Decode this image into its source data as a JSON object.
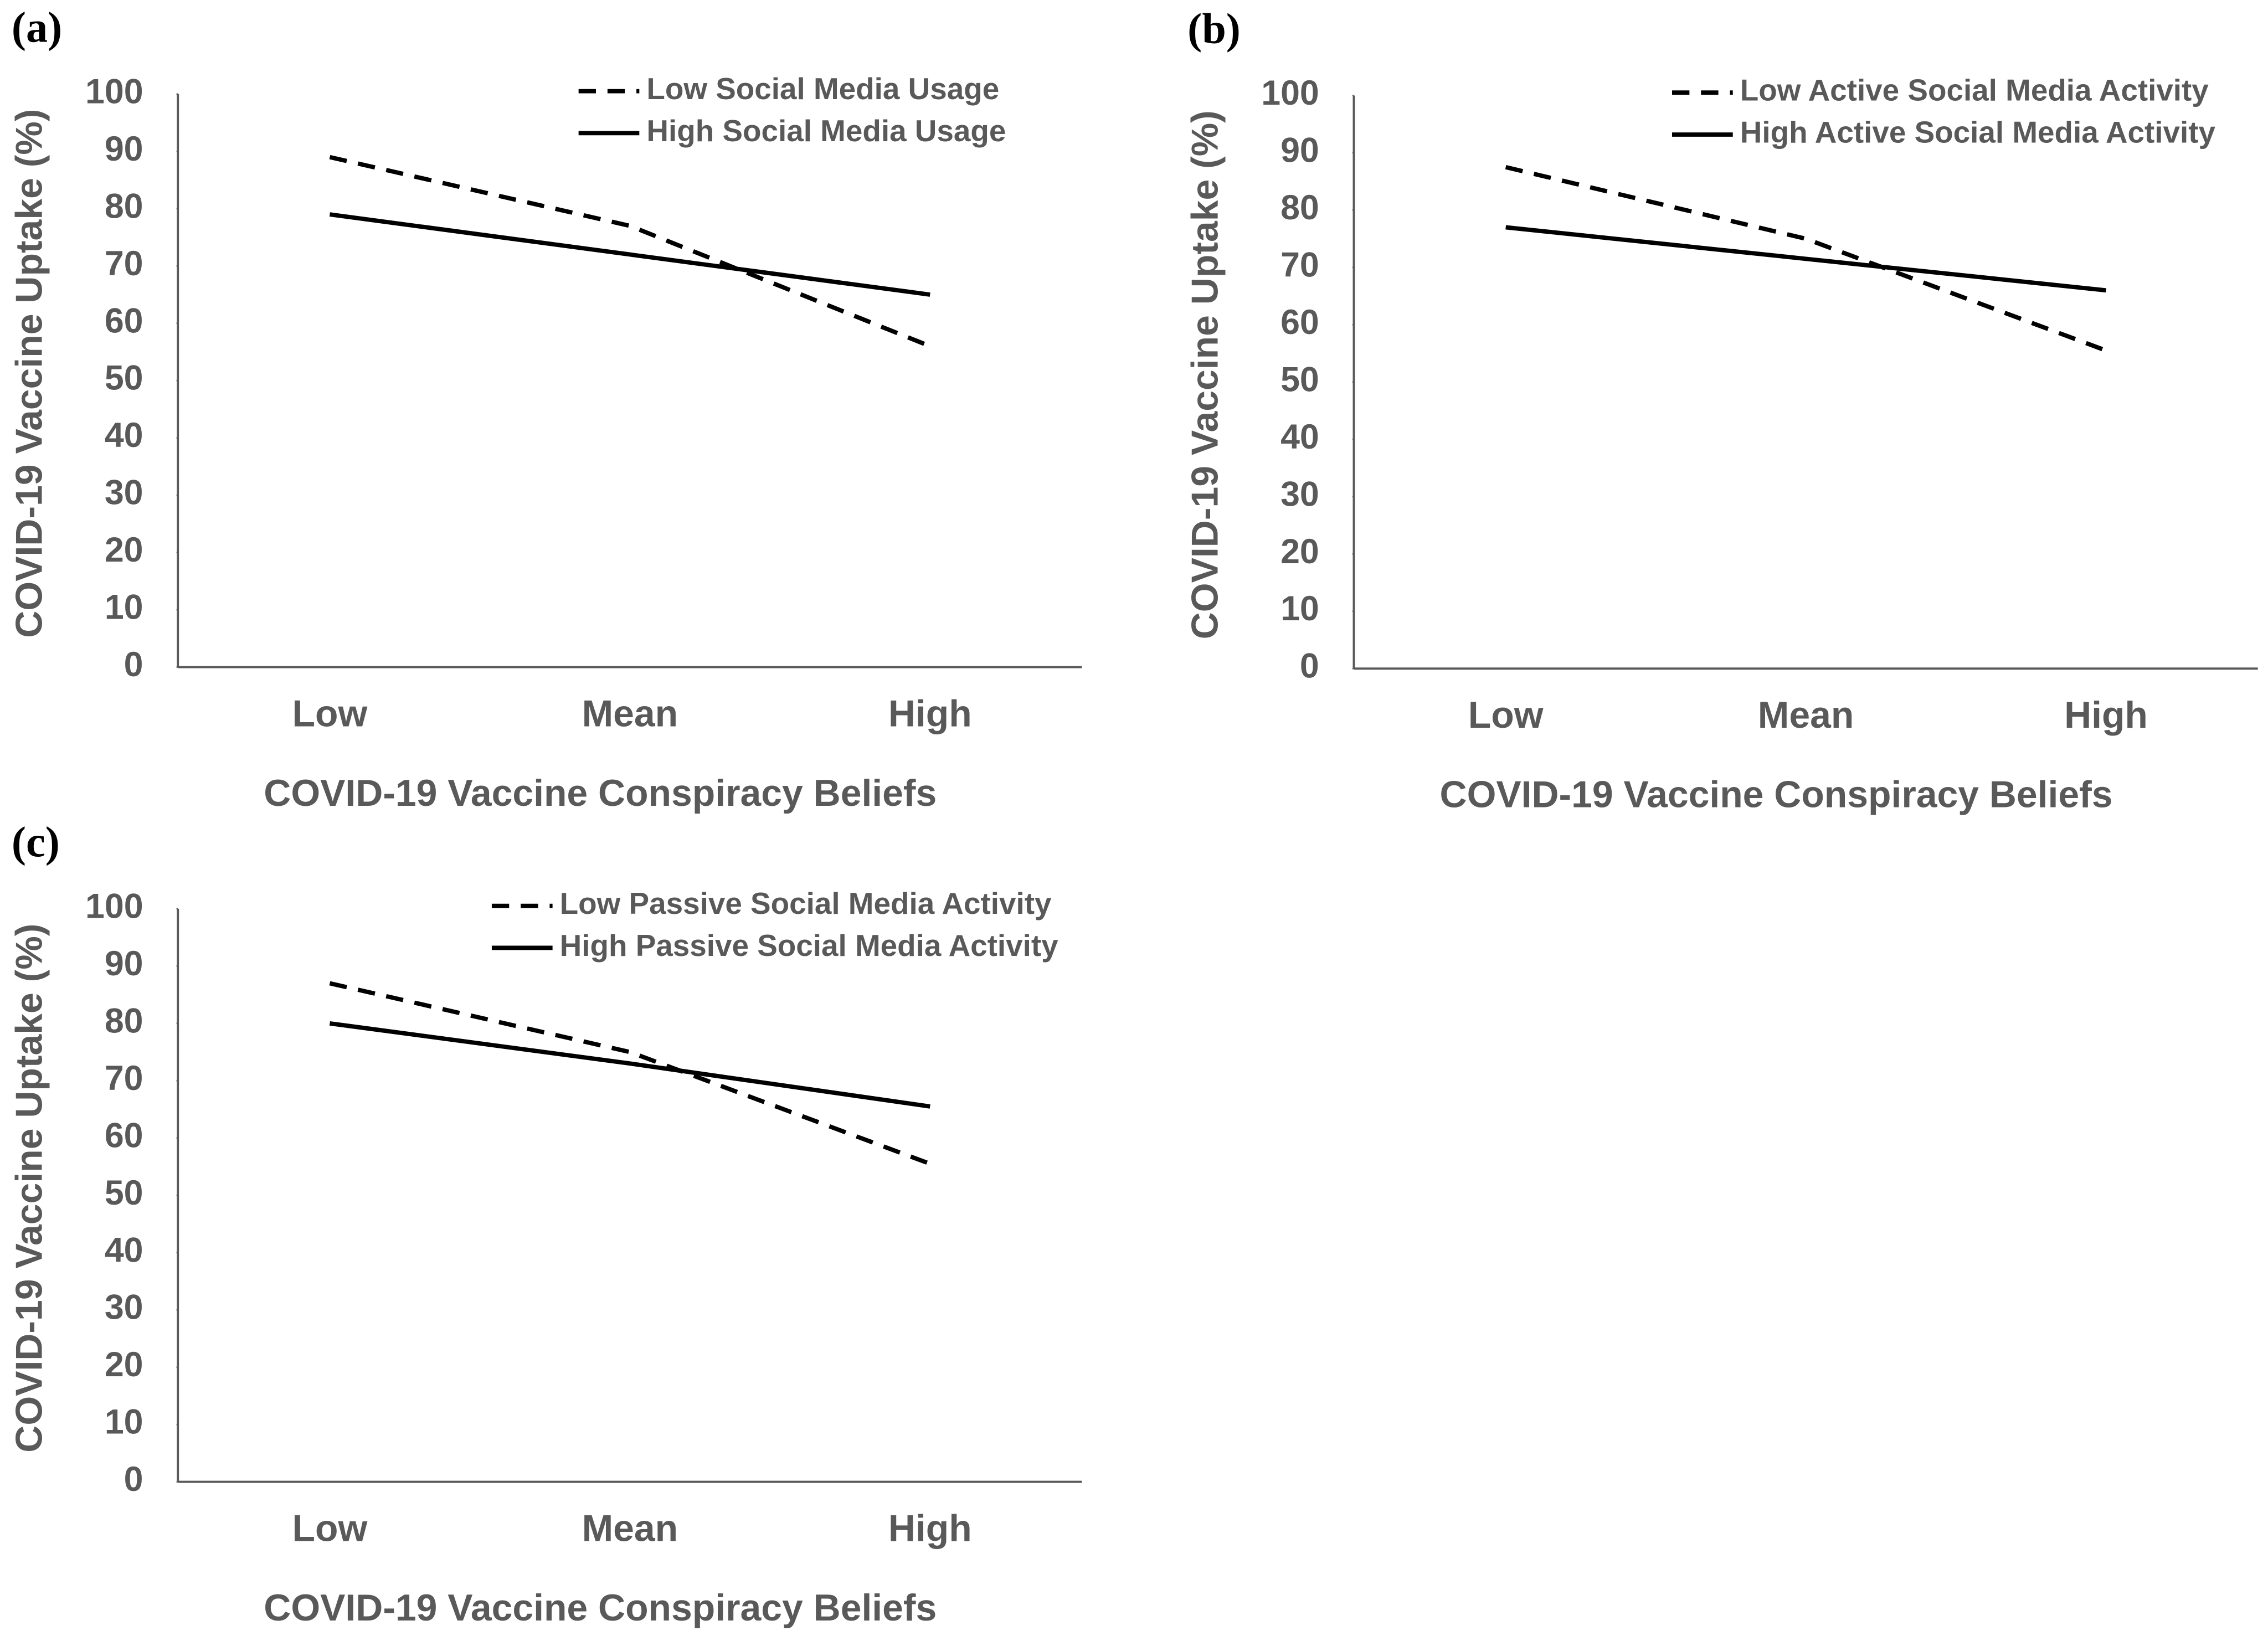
{
  "chart_data": [
    {
      "type": "line",
      "panel_label": "(a)",
      "xlabel": "COVID-19 Vaccine Conspiracy Beliefs",
      "ylabel": "COVID-19 Vaccine Uptake (%)",
      "categories": [
        "Low",
        "Mean",
        "High"
      ],
      "series": [
        {
          "name": "Low Social Media Usage",
          "color": "#000000",
          "line_style": "dashed",
          "values": [
            89,
            77,
            56
          ]
        },
        {
          "name": "High Social Media Usage",
          "color": "#000000",
          "line_style": "solid",
          "values": [
            79,
            72,
            65
          ]
        }
      ],
      "ylim": [
        0,
        100
      ],
      "yticks": [
        0,
        10,
        20,
        30,
        40,
        50,
        60,
        70,
        80,
        90,
        100
      ],
      "grid": false
    },
    {
      "type": "line",
      "panel_label": "(b)",
      "xlabel": "COVID-19 Vaccine Conspiracy Beliefs",
      "ylabel": "COVID-19 Vaccine Uptake (%)",
      "categories": [
        "Low",
        "Mean",
        "High"
      ],
      "series": [
        {
          "name": "Low Active Social Media Activity",
          "color": "#000000",
          "line_style": "dashed",
          "values": [
            87.5,
            75,
            55.5
          ]
        },
        {
          "name": "High Active Social Media Activity",
          "color": "#000000",
          "line_style": "solid",
          "values": [
            77,
            71.5,
            66
          ]
        }
      ],
      "ylim": [
        0,
        100
      ],
      "yticks": [
        0,
        10,
        20,
        30,
        40,
        50,
        60,
        70,
        80,
        90,
        100
      ],
      "grid": false
    },
    {
      "type": "line",
      "panel_label": "(c)",
      "xlabel": "COVID-19 Vaccine Conspiracy Beliefs",
      "ylabel": "COVID-19 Vaccine Uptake (%)",
      "categories": [
        "Low",
        "Mean",
        "High"
      ],
      "series": [
        {
          "name": "Low Passive Social Media Activity",
          "color": "#000000",
          "line_style": "dashed",
          "values": [
            87,
            75,
            55.5
          ]
        },
        {
          "name": "High Passive Social Media Activity",
          "color": "#000000",
          "line_style": "solid",
          "values": [
            80,
            73,
            65.5
          ]
        }
      ],
      "ylim": [
        0,
        100
      ],
      "yticks": [
        0,
        10,
        20,
        30,
        40,
        50,
        60,
        70,
        80,
        90,
        100
      ],
      "grid": false
    }
  ]
}
